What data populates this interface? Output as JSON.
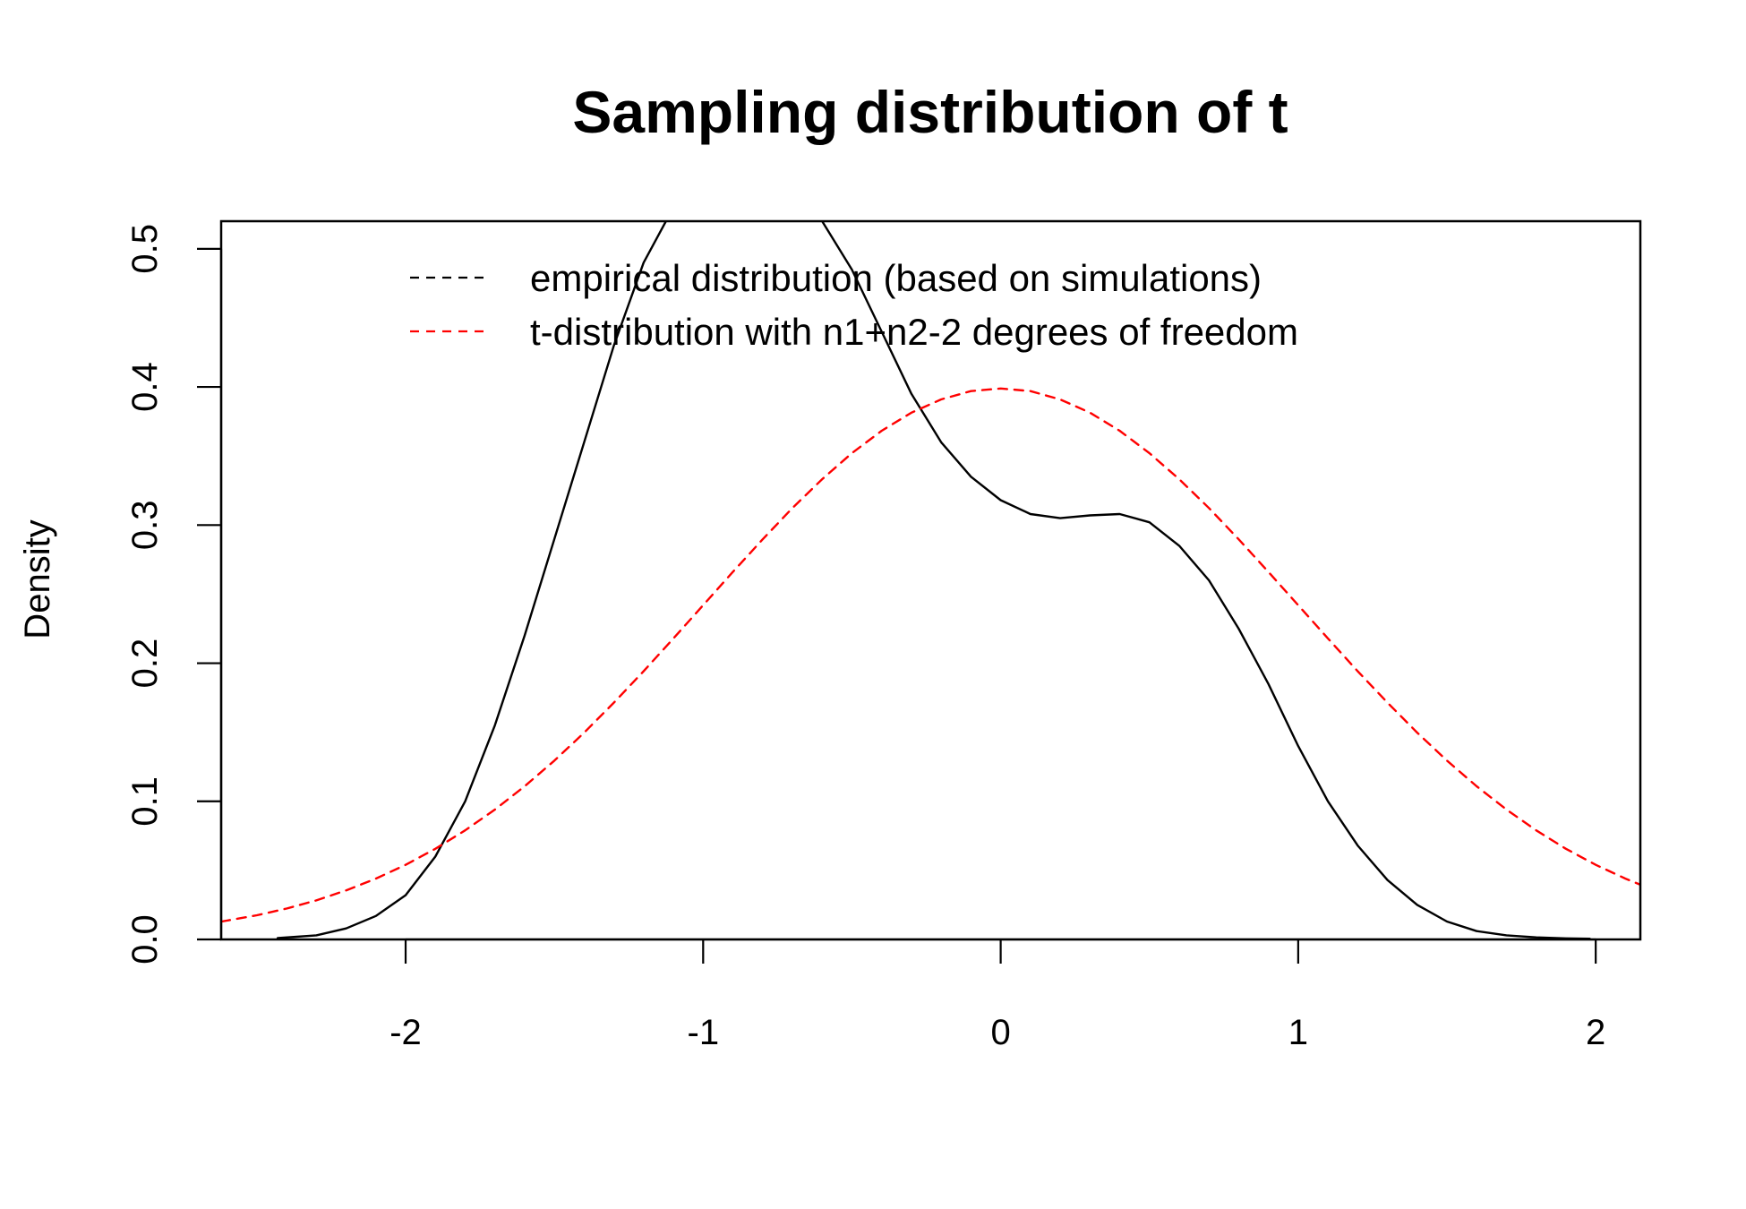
{
  "chart_data": {
    "type": "line",
    "title": "Sampling distribution of t",
    "xlabel": "",
    "ylabel": "Density",
    "xlim": [
      -2.62,
      2.15
    ],
    "ylim": [
      0,
      0.52
    ],
    "xticks": [
      -2,
      -1,
      0,
      1,
      2
    ],
    "xtick_labels": [
      "-2",
      "-1",
      "0",
      "1",
      "2"
    ],
    "yticks": [
      0.0,
      0.1,
      0.2,
      0.3,
      0.4,
      0.5
    ],
    "ytick_labels": [
      "0.0",
      "0.1",
      "0.2",
      "0.3",
      "0.4",
      "0.5"
    ],
    "baseline": 0,
    "baseline_color": "#c8c8c8",
    "legend_position": "top",
    "series": [
      {
        "name": "empirical distribution (based on simulations)",
        "color": "#000000",
        "style": "solid",
        "legend_style": "dashed",
        "x": [
          -2.43,
          -2.3,
          -2.2,
          -2.1,
          -2.0,
          -1.9,
          -1.8,
          -1.7,
          -1.6,
          -1.5,
          -1.4,
          -1.3,
          -1.2,
          -1.1,
          -1.0,
          -0.9,
          -0.8,
          -0.7,
          -0.6,
          -0.5,
          -0.4,
          -0.3,
          -0.2,
          -0.1,
          0.0,
          0.1,
          0.2,
          0.3,
          0.4,
          0.5,
          0.6,
          0.7,
          0.8,
          0.9,
          1.0,
          1.1,
          1.2,
          1.3,
          1.4,
          1.5,
          1.6,
          1.7,
          1.8,
          1.9,
          1.98
        ],
        "y": [
          0.001,
          0.003,
          0.008,
          0.017,
          0.032,
          0.06,
          0.1,
          0.155,
          0.22,
          0.29,
          0.36,
          0.43,
          0.49,
          0.53,
          0.56,
          0.568,
          0.562,
          0.545,
          0.52,
          0.485,
          0.44,
          0.395,
          0.36,
          0.335,
          0.318,
          0.308,
          0.305,
          0.307,
          0.308,
          0.302,
          0.285,
          0.26,
          0.225,
          0.185,
          0.14,
          0.1,
          0.068,
          0.043,
          0.025,
          0.013,
          0.006,
          0.003,
          0.0015,
          0.0008,
          0.0005
        ]
      },
      {
        "name": "t-distribution with n1+n2-2 degrees of freedom",
        "color": "#ff0000",
        "style": "dashed",
        "legend_style": "dashed",
        "x": [
          -2.62,
          -2.5,
          -2.4,
          -2.3,
          -2.2,
          -2.1,
          -2.0,
          -1.9,
          -1.8,
          -1.7,
          -1.6,
          -1.5,
          -1.4,
          -1.3,
          -1.2,
          -1.1,
          -1.0,
          -0.9,
          -0.8,
          -0.7,
          -0.6,
          -0.5,
          -0.4,
          -0.3,
          -0.2,
          -0.1,
          0.0,
          0.1,
          0.2,
          0.3,
          0.4,
          0.5,
          0.6,
          0.7,
          0.8,
          0.9,
          1.0,
          1.1,
          1.2,
          1.3,
          1.4,
          1.5,
          1.6,
          1.7,
          1.8,
          1.9,
          2.0,
          2.1,
          2.15
        ],
        "y": [
          0.0129,
          0.0175,
          0.0224,
          0.0283,
          0.0355,
          0.044,
          0.054,
          0.0656,
          0.079,
          0.094,
          0.1109,
          0.1295,
          0.1497,
          0.1714,
          0.1942,
          0.2179,
          0.242,
          0.2661,
          0.2897,
          0.3123,
          0.3332,
          0.3521,
          0.3683,
          0.3814,
          0.391,
          0.397,
          0.3989,
          0.397,
          0.391,
          0.3814,
          0.3683,
          0.3521,
          0.3332,
          0.3123,
          0.2897,
          0.2661,
          0.242,
          0.2179,
          0.1942,
          0.1714,
          0.1497,
          0.1295,
          0.1109,
          0.094,
          0.079,
          0.0656,
          0.054,
          0.044,
          0.0396
        ]
      }
    ]
  }
}
